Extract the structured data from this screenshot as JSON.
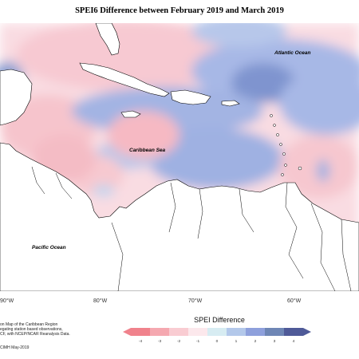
{
  "title": "SPEI6 Difference between February 2019 and March 2019",
  "regions": {
    "atlantic": "Atlantic Ocean",
    "caribbean": "Caribbean Sea",
    "pacific": "Pacific Ocean"
  },
  "longitude_ticks": [
    "90°W",
    "80°W",
    "70°W",
    "60°W"
  ],
  "note": [
    "on Map of the Caribbean Region",
    "egating station based observations,",
    "CF, with NCEP/NCAR Reanalysis Data."
  ],
  "credit": "CIMH May-2019",
  "legend": {
    "title": "SPEI Difference",
    "ticks": [
      "-4",
      "-3",
      "-2",
      "-1",
      "0",
      "1",
      "2",
      "3",
      "4"
    ],
    "colors": [
      "#f0828c",
      "#f5a8b0",
      "#f9ccd2",
      "#fce8ec",
      "#d7ecf2",
      "#b3c8ea",
      "#8ea0dc",
      "#6e86b5",
      "#4f5a98"
    ]
  }
}
